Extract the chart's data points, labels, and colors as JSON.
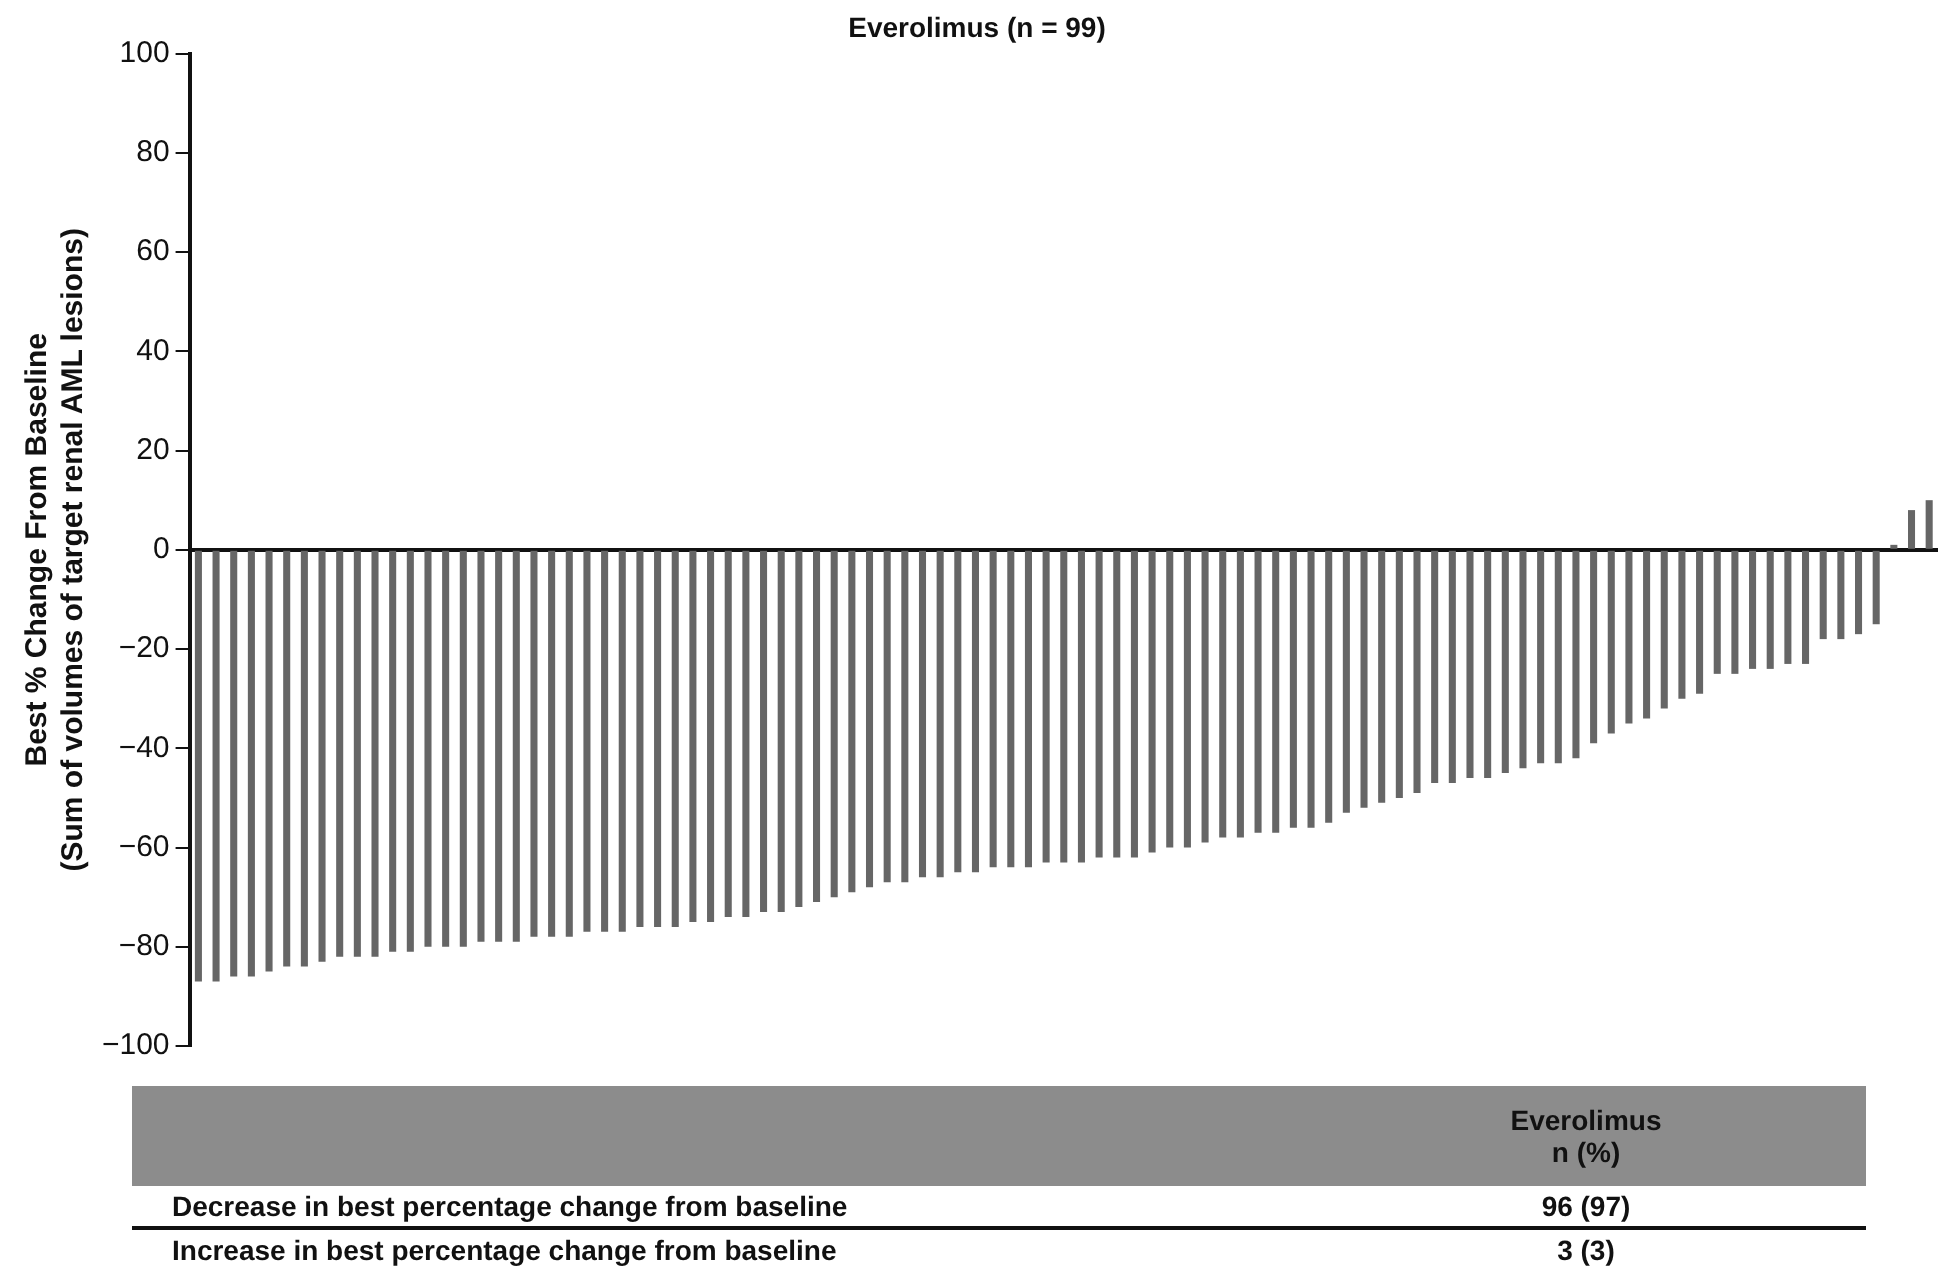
{
  "chart_data": {
    "type": "bar",
    "title": "Everolimus (n = 99)",
    "ylabel": "Best % Change From Baseline\n(Sum of volumes of target renal AML lesions)",
    "categories": [
      null,
      null,
      null,
      null,
      null,
      null,
      null,
      null,
      null,
      null,
      null,
      null,
      null,
      null,
      null,
      null,
      null,
      null,
      null,
      null,
      null,
      null,
      null,
      null,
      null,
      null,
      null,
      null,
      null,
      null,
      null,
      null,
      null,
      null,
      null,
      null,
      null,
      null,
      null,
      null,
      null,
      null,
      null,
      null,
      null,
      null,
      null,
      null,
      null,
      null,
      null,
      null,
      null,
      null,
      null,
      null,
      null,
      null,
      null,
      null,
      null,
      null,
      null,
      null,
      null,
      null,
      null,
      null,
      null,
      null,
      null,
      null,
      null,
      null,
      null,
      null,
      null,
      null,
      null,
      null,
      null,
      null,
      null,
      null,
      null,
      null,
      null,
      null,
      null,
      null,
      null,
      null,
      null,
      null,
      null,
      null,
      null,
      null,
      null
    ],
    "values": [
      -87,
      -87,
      -86,
      -86,
      -85,
      -84,
      -84,
      -83,
      -82,
      -82,
      -82,
      -81,
      -81,
      -80,
      -80,
      -80,
      -79,
      -79,
      -79,
      -78,
      -78,
      -78,
      -77,
      -77,
      -77,
      -76,
      -76,
      -76,
      -75,
      -75,
      -74,
      -74,
      -73,
      -73,
      -72,
      -71,
      -70,
      -69,
      -68,
      -67,
      -67,
      -66,
      -66,
      -65,
      -65,
      -64,
      -64,
      -64,
      -63,
      -63,
      -63,
      -62,
      -62,
      -62,
      -61,
      -60,
      -60,
      -59,
      -58,
      -58,
      -57,
      -57,
      -56,
      -56,
      -55,
      -53,
      -52,
      -51,
      -50,
      -49,
      -47,
      -47,
      -46,
      -46,
      -45,
      -44,
      -43,
      -43,
      -42,
      -39,
      -37,
      -35,
      -34,
      -32,
      -30,
      -29,
      -25,
      -25,
      -24,
      -24,
      -23,
      -23,
      -18,
      -18,
      -17,
      -15,
      1,
      8,
      10
    ],
    "color": "#666666",
    "ylim": [
      -100,
      100
    ],
    "yticks": [
      -100,
      -80,
      -60,
      -40,
      -20,
      0,
      20,
      40,
      60,
      80,
      100
    ],
    "tick_labels": "y",
    "annotations": [
      "Everolimus\nn (%)",
      "Decrease in best percentage change from baseline",
      "96 (97)",
      "Increase in best percentage change from baseline",
      "3 (3)"
    ]
  }
}
